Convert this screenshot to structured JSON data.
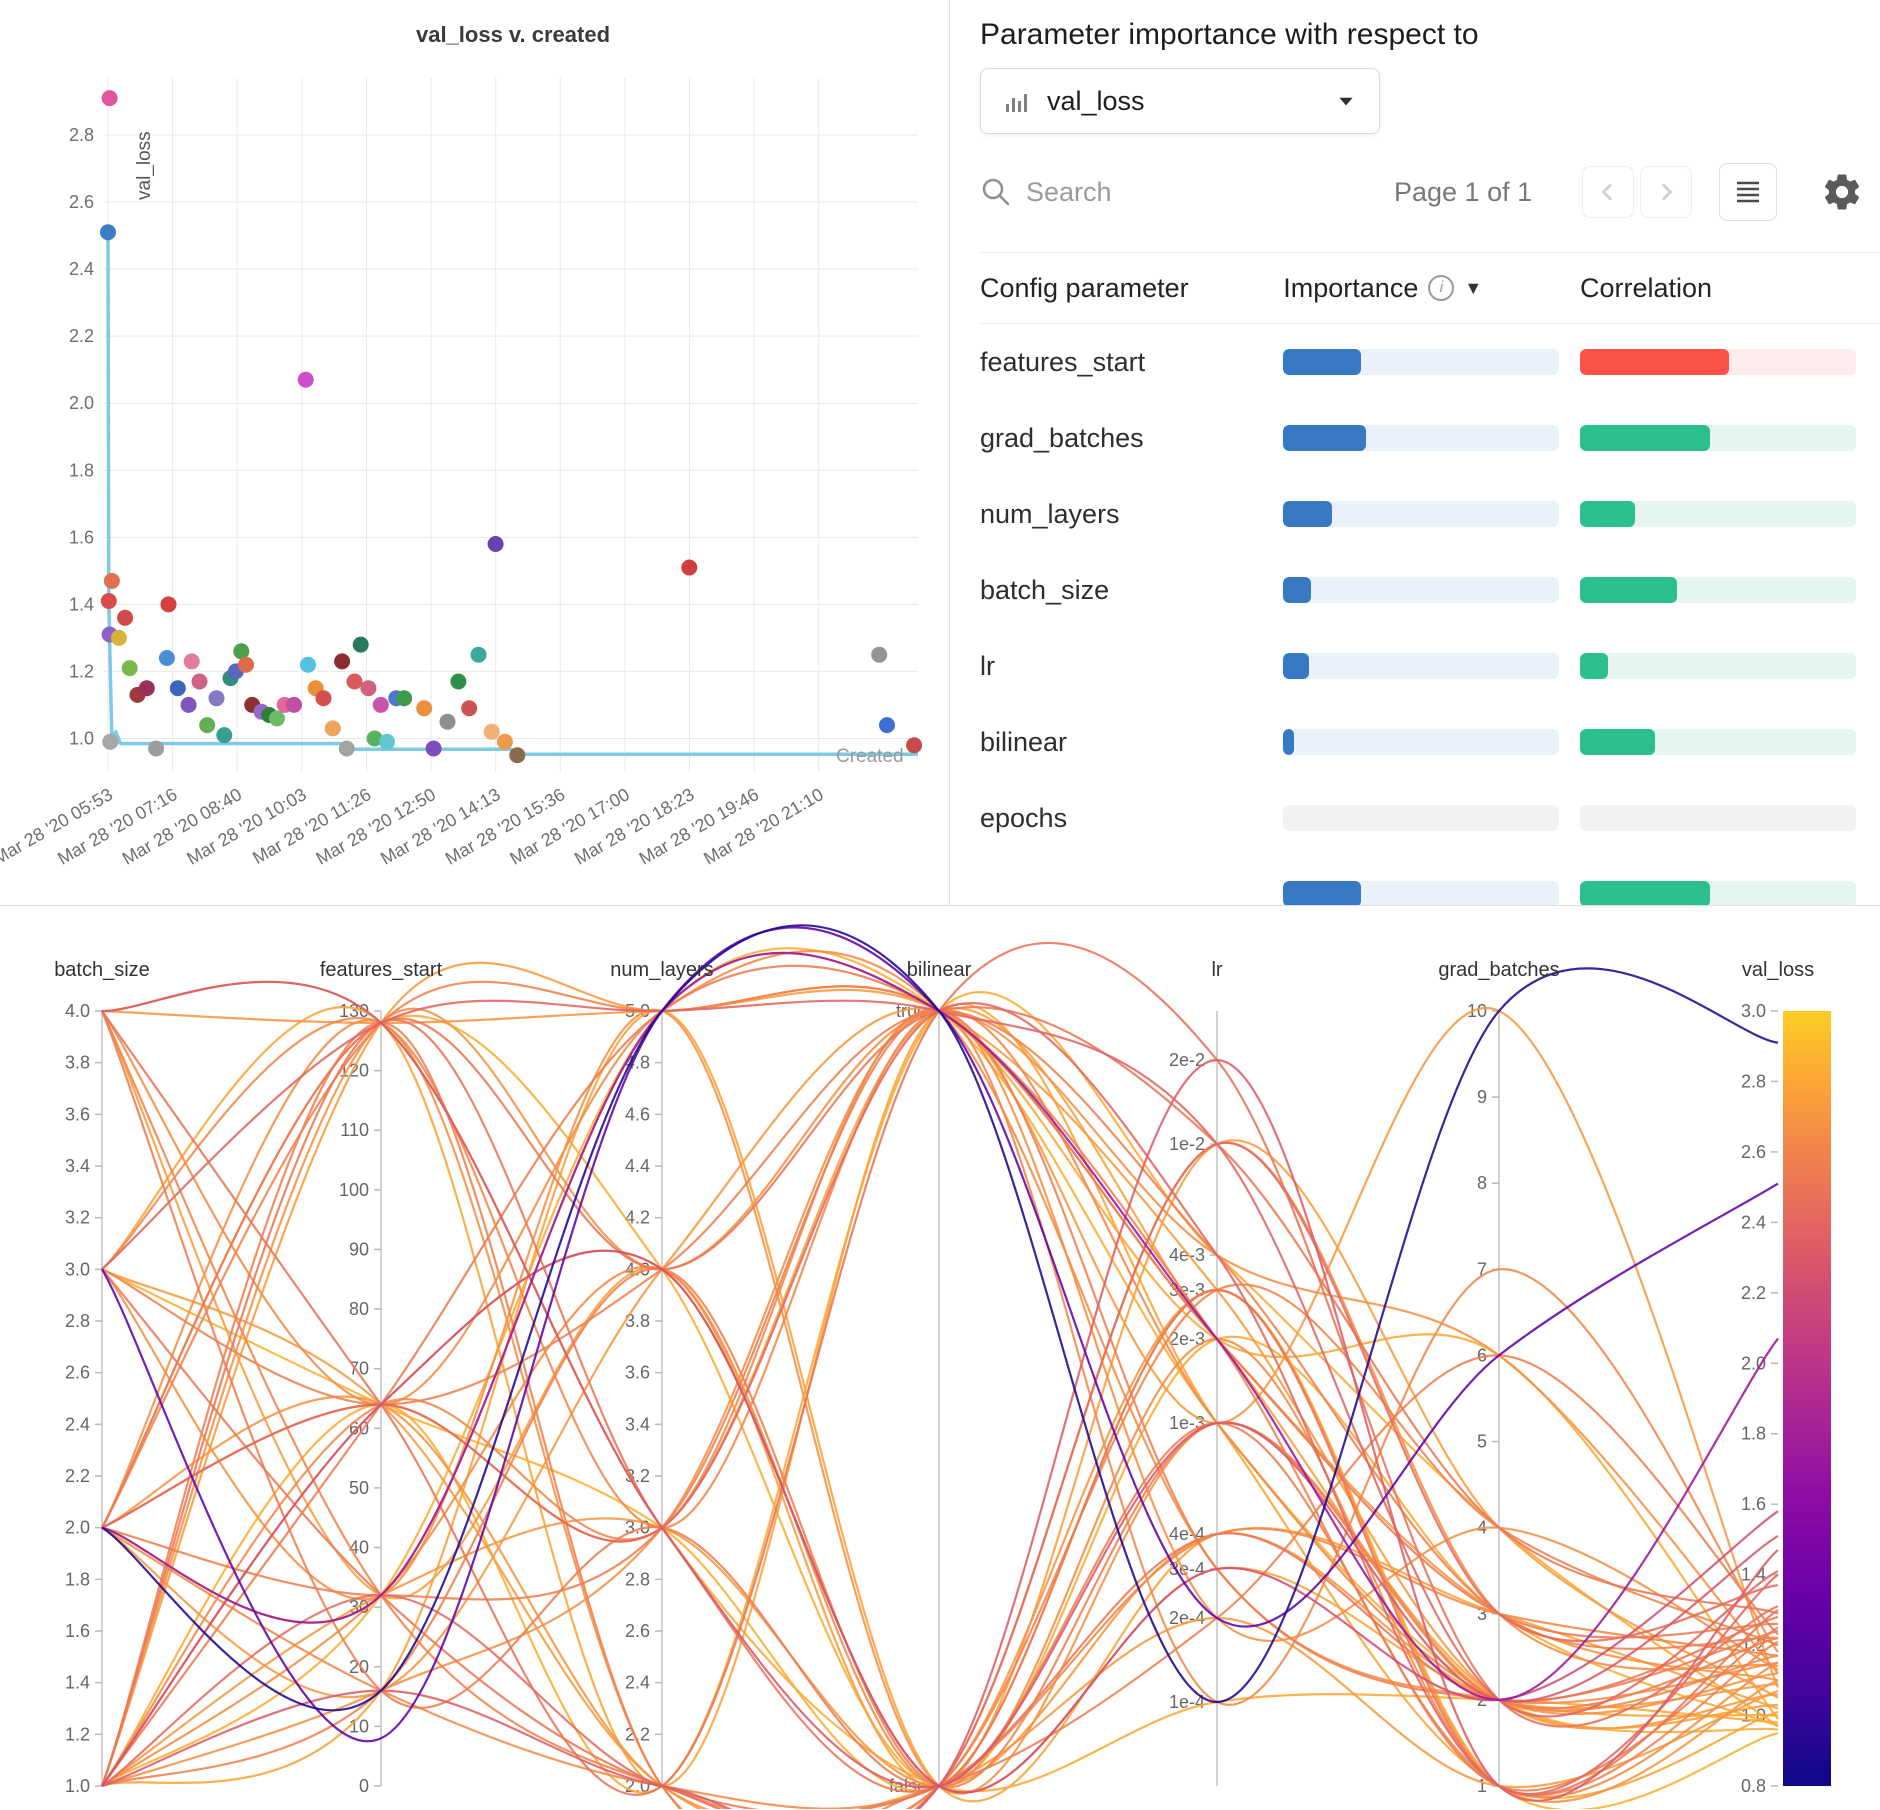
{
  "importance_panel": {
    "title": "Parameter importance with respect to",
    "metric_selector": {
      "value": "val_loss"
    },
    "search_placeholder": "Search",
    "pagination": "Page 1 of 1",
    "columns": {
      "parameter": "Config parameter",
      "importance": "Importance",
      "correlation": "Correlation"
    },
    "icons": {
      "info": "i",
      "sort_desc": "▼"
    },
    "colors": {
      "importance_fill": "#3779c2",
      "importance_track": "#e9f1fa",
      "correlation_fill": "#2bbf8e",
      "correlation_track": "#e4f6ef",
      "negative_fill": "#fb5149",
      "negative_track": "#fdeceb",
      "empty_track": "#f1f2f4"
    },
    "rows": [
      {
        "name": "features_start",
        "importance": 0.28,
        "correlation": 0.54,
        "negative": true
      },
      {
        "name": "grad_batches",
        "importance": 0.3,
        "correlation": 0.47
      },
      {
        "name": "num_layers",
        "importance": 0.175,
        "correlation": 0.2
      },
      {
        "name": "batch_size",
        "importance": 0.1,
        "correlation": 0.35
      },
      {
        "name": "lr",
        "importance": 0.095,
        "correlation": 0.1
      },
      {
        "name": "bilinear",
        "importance": 0.04,
        "correlation": 0.27
      },
      {
        "name": "epochs",
        "importance": 0,
        "correlation": 0
      },
      {
        "name": "",
        "importance": 0.28,
        "correlation": 0.47
      }
    ]
  },
  "chart_data": [
    {
      "type": "scatter",
      "title": "val_loss v. created",
      "xlabel": "Created",
      "ylabel": "val_loss",
      "x_tick_labels": [
        "Mar 28 '20 05:53",
        "Mar 28 '20 07:16",
        "Mar 28 '20 08:40",
        "Mar 28 '20 10:03",
        "Mar 28 '20 11:26",
        "Mar 28 '20 12:50",
        "Mar 28 '20 14:13",
        "Mar 28 '20 15:36",
        "Mar 28 '20 17:00",
        "Mar 28 '20 18:23",
        "Mar 28 '20 19:46",
        "Mar 28 '20 21:10"
      ],
      "x_tick_step_minutes": 83.36,
      "x_range_minutes": [
        0,
        1045
      ],
      "y_ticks": [
        "1.0",
        "1.2",
        "1.4",
        "1.6",
        "1.8",
        "2.0",
        "2.2",
        "2.4",
        "2.6",
        "2.8"
      ],
      "ylim": [
        0.9,
        2.97
      ],
      "min_line_color": "#7ec9e6",
      "min_line": [
        [
          0,
          2.51
        ],
        [
          1,
          1.41
        ],
        [
          3,
          1.2
        ],
        [
          5,
          0.99
        ],
        [
          10,
          1.02
        ],
        [
          16,
          0.985
        ],
        [
          300,
          0.985
        ],
        [
          308,
          0.968
        ],
        [
          520,
          0.968
        ],
        [
          528,
          0.953
        ],
        [
          1045,
          0.953
        ]
      ],
      "points": [
        [
          0,
          2.51,
          "#3d7dc4"
        ],
        [
          2,
          2.91,
          "#e0559e"
        ],
        [
          1,
          1.41,
          "#d84b4b"
        ],
        [
          5,
          1.47,
          "#e07050"
        ],
        [
          2,
          1.31,
          "#8a63c6"
        ],
        [
          3,
          0.99,
          "#a7a7a7"
        ],
        [
          14,
          1.3,
          "#d9b23e"
        ],
        [
          22,
          1.36,
          "#d14a4a"
        ],
        [
          28,
          1.21,
          "#7ab648"
        ],
        [
          38,
          1.13,
          "#a43939"
        ],
        [
          50,
          1.15,
          "#96325a"
        ],
        [
          62,
          0.97,
          "#9c9c9c"
        ],
        [
          78,
          1.4,
          "#d64040"
        ],
        [
          76,
          1.24,
          "#4a8fd6"
        ],
        [
          90,
          1.15,
          "#3b67bb"
        ],
        [
          108,
          1.23,
          "#e27b9e"
        ],
        [
          104,
          1.1,
          "#7d55bd"
        ],
        [
          118,
          1.17,
          "#cf6189"
        ],
        [
          128,
          1.04,
          "#63ad57"
        ],
        [
          140,
          1.12,
          "#8379c4"
        ],
        [
          150,
          1.01,
          "#35a08f"
        ],
        [
          158,
          1.18,
          "#2f8d80"
        ],
        [
          165,
          1.2,
          "#5a68bb"
        ],
        [
          172,
          1.26,
          "#4ba04e"
        ],
        [
          178,
          1.22,
          "#dd6a4a"
        ],
        [
          186,
          1.1,
          "#8e2f2f"
        ],
        [
          198,
          1.08,
          "#9468c9"
        ],
        [
          208,
          1.07,
          "#2f7d3a"
        ],
        [
          218,
          1.06,
          "#6cbb66"
        ],
        [
          228,
          1.1,
          "#e2679b"
        ],
        [
          240,
          1.1,
          "#c04fa4"
        ],
        [
          255,
          2.07,
          "#cb4fcb"
        ],
        [
          258,
          1.22,
          "#54c2de"
        ],
        [
          268,
          1.15,
          "#eb8f3c"
        ],
        [
          278,
          1.12,
          "#d45050"
        ],
        [
          290,
          1.03,
          "#eda45c"
        ],
        [
          302,
          1.23,
          "#8c2d2d"
        ],
        [
          308,
          0.97,
          "#a3a3a3"
        ],
        [
          318,
          1.17,
          "#dd5858"
        ],
        [
          326,
          1.28,
          "#257a60"
        ],
        [
          336,
          1.15,
          "#d2617f"
        ],
        [
          344,
          1.0,
          "#57b25f"
        ],
        [
          352,
          1.1,
          "#c757ad"
        ],
        [
          360,
          0.99,
          "#5fc6d4"
        ],
        [
          372,
          1.12,
          "#4d79cf"
        ],
        [
          382,
          1.12,
          "#3f9a49"
        ],
        [
          408,
          1.09,
          "#e9903f"
        ],
        [
          420,
          0.97,
          "#7e4cbb"
        ],
        [
          438,
          1.05,
          "#8f8f8f"
        ],
        [
          452,
          1.17,
          "#2f8f46"
        ],
        [
          466,
          1.09,
          "#cd5252"
        ],
        [
          478,
          1.25,
          "#3aa89c"
        ],
        [
          495,
          1.02,
          "#f0b077"
        ],
        [
          500,
          1.58,
          "#6b40b4"
        ],
        [
          512,
          0.99,
          "#ee9a4b"
        ],
        [
          528,
          0.95,
          "#8a6a4c"
        ],
        [
          750,
          1.51,
          "#d23c3c"
        ],
        [
          995,
          1.25,
          "#939393"
        ],
        [
          1005,
          1.04,
          "#3c6fd2"
        ],
        [
          1040,
          0.98,
          "#c94848"
        ]
      ]
    },
    {
      "type": "parallel-coordinates",
      "color_metric": "val_loss",
      "color_range": [
        0.8,
        3.0
      ],
      "colormap": [
        [
          0,
          "#0d0887"
        ],
        [
          0.12,
          "#41049d"
        ],
        [
          0.25,
          "#6a00a8"
        ],
        [
          0.38,
          "#8f0da4"
        ],
        [
          0.5,
          "#b12a90"
        ],
        [
          0.62,
          "#cc4778"
        ],
        [
          0.72,
          "#e16462"
        ],
        [
          0.82,
          "#f2844b"
        ],
        [
          0.91,
          "#fca636"
        ],
        [
          1,
          "#fcce25"
        ]
      ],
      "axes": [
        {
          "name": "batch_size",
          "scale": "linear",
          "min": 1,
          "max": 4,
          "ticks": [
            "4.0",
            "3.8",
            "3.6",
            "3.4",
            "3.2",
            "3.0",
            "2.8",
            "2.6",
            "2.4",
            "2.2",
            "2.0",
            "1.8",
            "1.6",
            "1.4",
            "1.2",
            "1.0"
          ]
        },
        {
          "name": "features_start",
          "scale": "linear",
          "min": 0,
          "max": 130,
          "ticks": [
            "130",
            "120",
            "110",
            "100",
            "90",
            "80",
            "70",
            "60",
            "50",
            "40",
            "30",
            "20",
            "10",
            "0"
          ]
        },
        {
          "name": "num_layers",
          "scale": "linear",
          "min": 2,
          "max": 5,
          "ticks": [
            "5.0",
            "4.8",
            "4.6",
            "4.4",
            "4.2",
            "4.0",
            "3.8",
            "3.6",
            "3.4",
            "3.2",
            "3.0",
            "2.8",
            "2.6",
            "2.4",
            "2.2",
            "2.0"
          ]
        },
        {
          "name": "bilinear",
          "scale": "categorical",
          "categories": [
            "true",
            "false"
          ],
          "ticks": [
            "true",
            "false"
          ]
        },
        {
          "name": "lr",
          "scale": "log",
          "min": 5e-05,
          "max": 0.03,
          "ticks": [
            "2e-2",
            "1e-2",
            "4e-3",
            "3e-3",
            "2e-3",
            "1e-3",
            "4e-4",
            "3e-4",
            "2e-4",
            "1e-4"
          ]
        },
        {
          "name": "grad_batches",
          "scale": "linear",
          "min": 1,
          "max": 10,
          "ticks": [
            "10",
            "9",
            "8",
            "7",
            "6",
            "5",
            "4",
            "3",
            "2",
            "1"
          ]
        },
        {
          "name": "val_loss",
          "scale": "colorbar",
          "min": 0.8,
          "max": 3,
          "ticks": [
            "0.8",
            "1.0",
            "1.2",
            "1.4",
            "1.6",
            "1.8",
            "2.0",
            "2.2",
            "2.4",
            "2.6",
            "2.8",
            "3.0"
          ]
        }
      ],
      "runs": [
        [
          2,
          16,
          5,
          "true",
          0.0001,
          10,
          2.91
        ],
        [
          3,
          8,
          5,
          "true",
          0.0002,
          6,
          2.51
        ],
        [
          2,
          32,
          5,
          "true",
          0.002,
          2,
          2.07
        ],
        [
          1,
          64,
          4,
          "false",
          0.0003,
          2,
          1.58
        ],
        [
          4,
          128,
          3,
          "false",
          0.001,
          2,
          1.51
        ],
        [
          1,
          16,
          2,
          "false",
          0.02,
          1,
          1.47
        ],
        [
          3,
          128,
          5,
          "true",
          0.01,
          2,
          1.41
        ],
        [
          2,
          64,
          3,
          "true",
          0.004,
          1,
          1.4
        ],
        [
          1,
          32,
          2,
          "false",
          0.01,
          3,
          1.37
        ],
        [
          4,
          64,
          2,
          "true",
          0.02,
          2,
          1.31
        ],
        [
          1,
          128,
          3,
          "false",
          0.003,
          1,
          1.3
        ],
        [
          2,
          128,
          4,
          "true",
          0.01,
          4,
          1.29
        ],
        [
          3,
          32,
          2,
          "false",
          0.0004,
          2,
          1.28
        ],
        [
          1,
          64,
          5,
          "true",
          0.002,
          3,
          1.26
        ],
        [
          4,
          16,
          3,
          "false",
          0.001,
          1,
          1.25
        ],
        [
          2,
          32,
          3,
          "true",
          0.0003,
          2,
          1.24
        ],
        [
          1,
          128,
          2,
          "false",
          0.0002,
          6,
          1.23
        ],
        [
          3,
          64,
          4,
          "true",
          0.004,
          3,
          1.22
        ],
        [
          1,
          16,
          4,
          "false",
          0.001,
          2,
          1.22
        ],
        [
          2,
          128,
          5,
          "true",
          0.002,
          1,
          1.21
        ],
        [
          4,
          32,
          2,
          "false",
          0.003,
          4,
          1.2
        ],
        [
          1,
          64,
          3,
          "true",
          0.0001,
          7,
          1.18
        ],
        [
          2,
          16,
          2,
          "false",
          0.0004,
          3,
          1.17
        ],
        [
          3,
          128,
          3,
          "true",
          0.001,
          2,
          1.17
        ],
        [
          1,
          32,
          4,
          "false",
          0.002,
          1,
          1.15
        ],
        [
          4,
          64,
          5,
          "true",
          0.0003,
          2,
          1.15
        ],
        [
          2,
          128,
          2,
          "false",
          0.01,
          3,
          1.14
        ],
        [
          1,
          16,
          3,
          "true",
          0.0002,
          4,
          1.13
        ],
        [
          3,
          32,
          5,
          "false",
          0.001,
          2,
          1.12
        ],
        [
          1,
          128,
          4,
          "true",
          0.004,
          6,
          1.12
        ],
        [
          2,
          64,
          2,
          "false",
          0.003,
          1,
          1.1
        ],
        [
          4,
          128,
          5,
          "true",
          0.002,
          3,
          1.1
        ],
        [
          1,
          32,
          3,
          "false",
          0.0004,
          2,
          1.09
        ],
        [
          2,
          16,
          4,
          "true",
          0.001,
          10,
          1.08
        ],
        [
          3,
          64,
          2,
          "false",
          0.0002,
          1,
          1.07
        ],
        [
          1,
          128,
          5,
          "true",
          0.003,
          2,
          1.06
        ],
        [
          4,
          32,
          4,
          "false",
          0.01,
          4,
          1.05
        ],
        [
          2,
          64,
          3,
          "true",
          0.002,
          2,
          1.03
        ],
        [
          1,
          16,
          5,
          "false",
          0.0004,
          3,
          1.02
        ],
        [
          3,
          128,
          2,
          "true",
          0.001,
          1,
          1.01
        ],
        [
          1,
          64,
          4,
          "false",
          0.0003,
          2,
          1.0
        ],
        [
          2,
          32,
          5,
          "true",
          0.002,
          6,
          0.99
        ],
        [
          4,
          128,
          3,
          "false",
          0.0001,
          2,
          0.98
        ],
        [
          1,
          64,
          2,
          "true",
          0.004,
          4,
          0.97
        ],
        [
          2,
          128,
          4,
          "false",
          0.002,
          3,
          0.97
        ],
        [
          1,
          32,
          5,
          "true",
          0.001,
          2,
          0.96
        ],
        [
          3,
          64,
          3,
          "false",
          0.003,
          1,
          0.95
        ]
      ]
    }
  ]
}
